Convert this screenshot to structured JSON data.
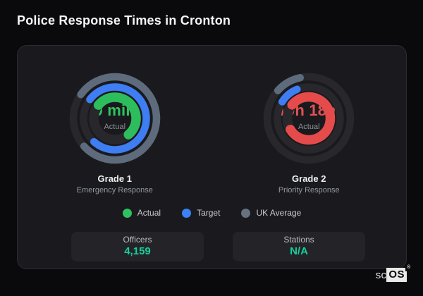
{
  "page": {
    "title": "Police Response Times in Cronton"
  },
  "colors": {
    "background": "#0a0a0d",
    "card_bg": "#1a1a1e",
    "card_border": "#2b2b31",
    "ring_track": "#27272c",
    "actual_green": "#2dbd5c",
    "target_blue": "#3e7df2",
    "uk_average_gray": "#5d6b7c",
    "alert_red": "#e64b4b",
    "stat_value_teal": "#16cfa0"
  },
  "chart_data": [
    {
      "type": "gauge",
      "title": "Grade 1",
      "subtitle": "Emergency Response",
      "value": "9 min",
      "value_label": "Actual",
      "value_color": "#2fc35f",
      "track_color": "#27272c",
      "rings": [
        {
          "key": "uk-average",
          "name": "UK Average",
          "color": "#5d6b7c",
          "radius": 59,
          "stroke": 10.5,
          "start_deg": 305,
          "sweep_deg": 283
        },
        {
          "key": "target",
          "name": "Target",
          "color": "#3e7df2",
          "radius": 44.5,
          "stroke": 10.5,
          "start_deg": 307,
          "sweep_deg": 275
        },
        {
          "key": "actual",
          "name": "Actual",
          "color": "#2dbd5c",
          "radius": 30,
          "stroke": 13.5,
          "start_deg": 309,
          "sweep_deg": 191
        }
      ]
    },
    {
      "type": "gauge",
      "title": "Grade 2",
      "subtitle": "Priority Response",
      "value": "10h 18m",
      "value_label": "Actual",
      "value_color": "#e25252",
      "track_color": "#27272c",
      "rings": [
        {
          "key": "uk-average",
          "name": "UK Average",
          "color": "#5d6b7c",
          "radius": 59,
          "stroke": 10.5,
          "start_deg": 312,
          "sweep_deg": 36
        },
        {
          "key": "target",
          "name": "Target",
          "color": "#3e7df2",
          "radius": 44.5,
          "stroke": 10.5,
          "start_deg": 302,
          "sweep_deg": 36
        },
        {
          "key": "actual",
          "name": "Actual",
          "color": "#e64b4b",
          "radius": 30.5,
          "stroke": 13.5,
          "start_deg": 309,
          "sweep_deg": 290
        }
      ]
    }
  ],
  "legend": {
    "items": [
      {
        "key": "actual",
        "label": "Actual",
        "color": "#2fc162"
      },
      {
        "key": "target",
        "label": "Target",
        "color": "#3b82f6"
      },
      {
        "key": "uk-average",
        "label": "UK Average",
        "color": "#68727f"
      }
    ]
  },
  "stats": [
    {
      "label": "Officers",
      "value": "4,159"
    },
    {
      "label": "Stations",
      "value": "N/A"
    }
  ],
  "logo": {
    "prefix": "sc",
    "suffix": "OS",
    "registered": "®"
  }
}
